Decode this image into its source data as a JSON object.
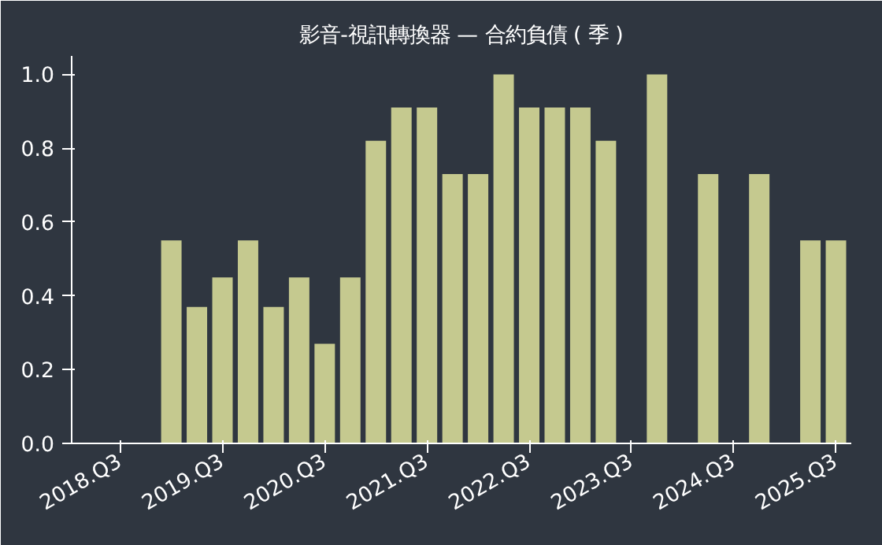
{
  "chart_data": {
    "type": "bar",
    "title": "影音-視訊轉換器 — 合約負債 ( 季 )",
    "categories": [
      "2018.Q3",
      null,
      null,
      null,
      "2019.Q3",
      null,
      null,
      null,
      "2020.Q3",
      null,
      null,
      null,
      "2021.Q3",
      null,
      null,
      null,
      "2022.Q3",
      null,
      null,
      null,
      "2023.Q3",
      null,
      null,
      null,
      "2024.Q3",
      null,
      null,
      null,
      "2025.Q3"
    ],
    "values": [
      null,
      null,
      0.55,
      0.37,
      0.45,
      0.55,
      0.37,
      0.45,
      0.27,
      0.45,
      0.82,
      0.91,
      0.91,
      0.73,
      0.73,
      1.0,
      0.91,
      0.91,
      0.91,
      0.82,
      null,
      1.0,
      null,
      0.73,
      null,
      0.73,
      null,
      0.55,
      0.55
    ],
    "color": "#c5c98f",
    "ylim": [
      0,
      1.05
    ],
    "yticks": [
      {
        "value": 0,
        "label": "0.0"
      },
      {
        "value": 0.2,
        "label": "0.2"
      },
      {
        "value": 0.4,
        "label": "0.4"
      },
      {
        "value": 0.6,
        "label": "0.6"
      },
      {
        "value": 0.8,
        "label": "0.8"
      },
      {
        "value": 1.0,
        "label": "1.0"
      }
    ],
    "grid": false,
    "legend": false
  }
}
